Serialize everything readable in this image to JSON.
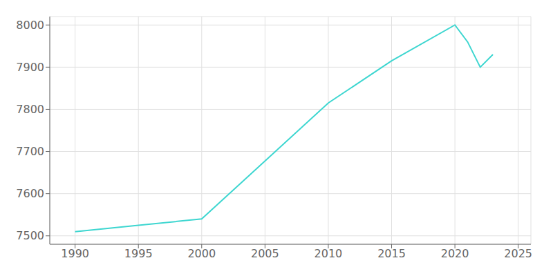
{
  "chart_data": {
    "type": "line",
    "x": [
      1990,
      1995,
      2000,
      2010,
      2015,
      2020,
      2021,
      2022,
      2023
    ],
    "values": [
      7510,
      7525,
      7540,
      7815,
      7915,
      8000,
      7960,
      7900,
      7930
    ],
    "color": "#3DD6D0",
    "xlim": [
      1988,
      2026
    ],
    "ylim": [
      7480,
      8020
    ],
    "xticks": [
      1990,
      1995,
      2000,
      2005,
      2010,
      2015,
      2020,
      2025
    ],
    "yticks": [
      7500,
      7600,
      7700,
      7800,
      7900,
      8000
    ],
    "grid": true
  }
}
